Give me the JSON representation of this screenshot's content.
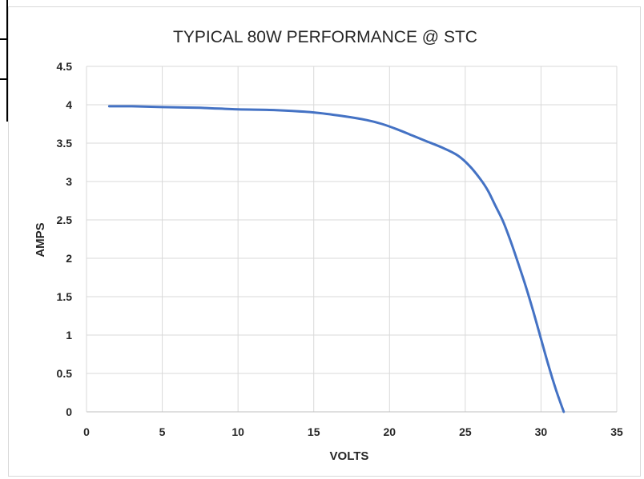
{
  "chart_data": {
    "type": "line",
    "title": "TYPICAL 80W PERFORMANCE  @ STC",
    "xlabel": "VOLTS",
    "ylabel": "AMPS",
    "xlim": [
      0,
      35
    ],
    "ylim": [
      0,
      4.5
    ],
    "x_ticks": [
      0,
      5,
      10,
      15,
      20,
      25,
      30,
      35
    ],
    "y_ticks": [
      0,
      0.5,
      1,
      1.5,
      2,
      2.5,
      3,
      3.5,
      4,
      4.5
    ],
    "x_tick_labels": [
      "0",
      "5",
      "10",
      "15",
      "20",
      "25",
      "30",
      "35"
    ],
    "y_tick_labels": [
      "0",
      "0.5",
      "1",
      "1.5",
      "2",
      "2.5",
      "3",
      "3.5",
      "4",
      "4.5"
    ],
    "grid": true,
    "legend": "none",
    "series": [
      {
        "color": "#4472c4",
        "x": [
          1.5,
          3,
          5,
          7.5,
          10,
          12.5,
          15,
          17,
          18.5,
          19.5,
          20.5,
          21.5,
          22.5,
          23.5,
          24.5,
          25.3,
          26,
          26.5,
          27,
          27.5,
          28,
          28.5,
          29,
          29.5,
          30,
          30.5,
          31,
          31.5
        ],
        "y": [
          3.98,
          3.98,
          3.97,
          3.96,
          3.94,
          3.93,
          3.9,
          3.85,
          3.8,
          3.75,
          3.68,
          3.6,
          3.52,
          3.44,
          3.34,
          3.2,
          3.03,
          2.88,
          2.68,
          2.48,
          2.22,
          1.93,
          1.63,
          1.3,
          0.95,
          0.6,
          0.28,
          0.0
        ]
      }
    ]
  }
}
